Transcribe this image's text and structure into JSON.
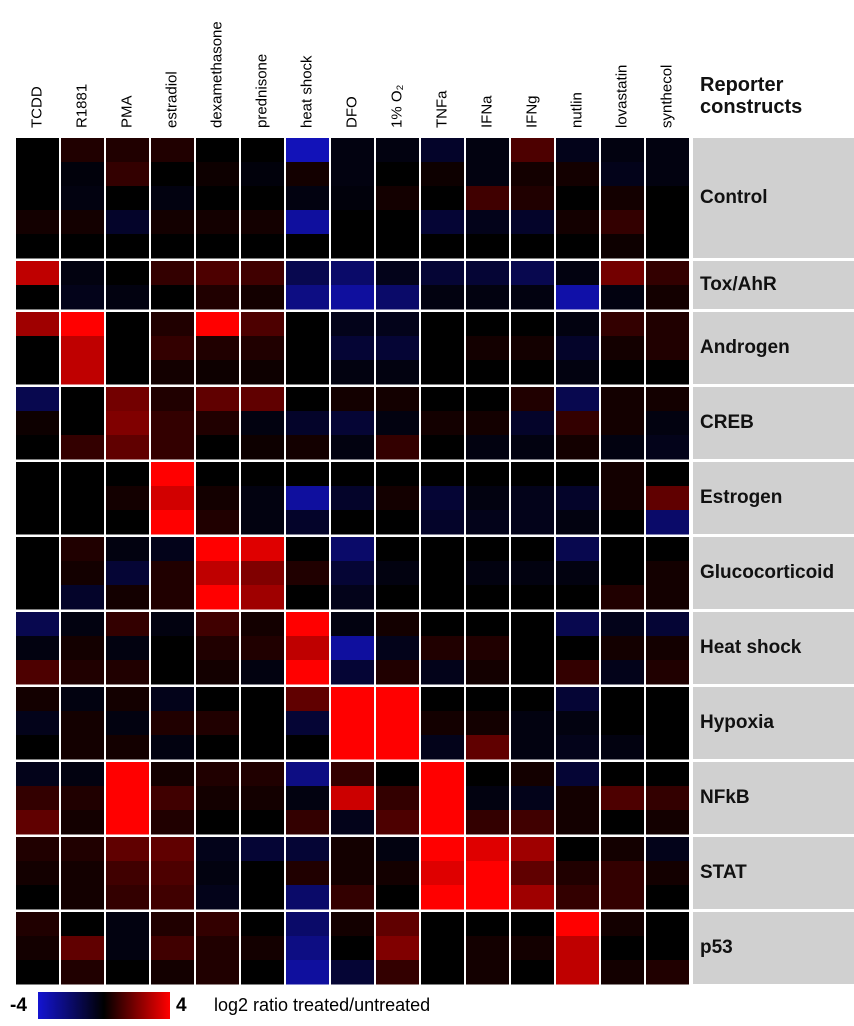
{
  "chart_data": {
    "type": "heatmap",
    "columns": [
      "TCDD",
      "R1881",
      "PMA",
      "estradiol",
      "dexamethasone",
      "prednisone",
      "heat shock",
      "DFO",
      "1% O₂",
      "TNFa",
      "IFNa",
      "IFNg",
      "nutlin",
      "lovastatin",
      "synthecol"
    ],
    "row_header": "Reporter constructs",
    "zlim": [
      -4,
      4
    ],
    "colorbar_label": "log2 ratio treated/untreated",
    "color_low": "#1414d2",
    "color_mid": "#000000",
    "color_high": "#ff0000",
    "groups": [
      {
        "label": "Control",
        "rows": [
          [
            0,
            0.5,
            0.5,
            0.5,
            0,
            0,
            -3.5,
            -0.3,
            -0.3,
            -0.8,
            -0.3,
            1.2,
            -0.5,
            -0.3,
            -0.3
          ],
          [
            0,
            -0.2,
            0.8,
            0,
            0.2,
            -0.2,
            0.3,
            -0.3,
            0,
            0.2,
            -0.3,
            0.3,
            0.3,
            -0.5,
            -0.3
          ],
          [
            0,
            -0.3,
            0,
            -0.3,
            0,
            0,
            -0.3,
            -0.2,
            0.3,
            0,
            1,
            0.5,
            0,
            0.3,
            0
          ],
          [
            0.3,
            0.3,
            -0.8,
            0.3,
            0.3,
            0.3,
            -3,
            0,
            0,
            -1,
            -0.5,
            -0.8,
            0.3,
            0.8,
            0
          ],
          [
            0,
            0,
            0,
            0,
            0,
            0,
            0,
            0,
            0,
            0,
            0,
            0,
            0,
            0.2,
            0
          ]
        ]
      },
      {
        "label": "Tox/AhR",
        "rows": [
          [
            3,
            -0.3,
            0,
            0.8,
            1.2,
            1,
            -1.5,
            -2,
            -0.5,
            -1,
            -1,
            -1.5,
            -0.3,
            1.8,
            0.8
          ],
          [
            0,
            -0.5,
            -0.3,
            0,
            0.5,
            0.3,
            -2.5,
            -3,
            -2,
            -0.3,
            -0.3,
            -0.3,
            -3.2,
            -0.3,
            0.3
          ]
        ]
      },
      {
        "label": "Androgen",
        "rows": [
          [
            2.5,
            4,
            0,
            0.5,
            4,
            1.2,
            0,
            -0.5,
            -0.5,
            0,
            0,
            0,
            -0.3,
            0.8,
            0.5
          ],
          [
            0,
            3,
            0,
            0.8,
            0.5,
            0.5,
            0,
            -1,
            -1,
            0,
            0.3,
            0.3,
            -0.8,
            0.3,
            0.5
          ],
          [
            0,
            3,
            0,
            0.3,
            0.2,
            0.2,
            0,
            -0.3,
            -0.3,
            0,
            0,
            0,
            -0.3,
            0,
            0
          ]
        ]
      },
      {
        "label": "CREB",
        "rows": [
          [
            -1.5,
            0,
            1.8,
            0.5,
            1.5,
            1.5,
            0,
            0.3,
            0.3,
            0,
            0,
            0.5,
            -1.5,
            0.3,
            0.3
          ],
          [
            0.2,
            0,
            2,
            0.8,
            0.5,
            -0.3,
            -0.8,
            -1,
            -0.3,
            0.3,
            0.3,
            -0.8,
            0.8,
            0.3,
            -0.3
          ],
          [
            0,
            0.8,
            1.5,
            0.8,
            0,
            0.2,
            0.3,
            -0.3,
            0.8,
            0,
            -0.3,
            -0.3,
            0.3,
            -0.3,
            -0.5
          ]
        ]
      },
      {
        "label": "Estrogen",
        "rows": [
          [
            0,
            0,
            0,
            4,
            0,
            0,
            0,
            0,
            0,
            0,
            0,
            0,
            0,
            0.3,
            0
          ],
          [
            0,
            0,
            0.3,
            3.3,
            0.3,
            -0.3,
            -3,
            -0.8,
            0.3,
            -1,
            -0.3,
            -0.5,
            -0.8,
            0.3,
            1.5
          ],
          [
            0,
            0,
            0,
            4,
            0.5,
            -0.3,
            -0.8,
            0,
            0,
            -0.8,
            -0.5,
            -0.5,
            -0.3,
            0,
            -2
          ]
        ]
      },
      {
        "label": "Glucocorticoid",
        "rows": [
          [
            0,
            0.5,
            -0.3,
            -0.5,
            4,
            3.5,
            0,
            -2,
            0,
            0,
            0,
            0,
            -1.5,
            0,
            0
          ],
          [
            0,
            0.3,
            -1,
            0.5,
            3,
            2,
            0.5,
            -1,
            -0.3,
            0,
            -0.3,
            -0.3,
            -0.3,
            0,
            0.3
          ],
          [
            0,
            -0.8,
            0.3,
            0.5,
            4,
            2.5,
            0,
            -0.5,
            0,
            0,
            0,
            0,
            0,
            0.5,
            0.3
          ]
        ]
      },
      {
        "label": "Heat shock",
        "rows": [
          [
            -1.5,
            -0.3,
            0.8,
            -0.3,
            1,
            0.3,
            4,
            -0.3,
            0.3,
            0,
            0,
            0,
            -1.5,
            -0.5,
            -1
          ],
          [
            -0.3,
            0.3,
            -0.3,
            0,
            0.5,
            0.5,
            3,
            -3,
            -0.5,
            0.5,
            0.5,
            0,
            0,
            0.3,
            0.3
          ],
          [
            1.2,
            0.5,
            0.5,
            0,
            0.3,
            -0.3,
            4,
            -1,
            0.5,
            -0.5,
            0.3,
            0,
            0.8,
            -0.5,
            0.5
          ]
        ]
      },
      {
        "label": "Hypoxia",
        "rows": [
          [
            0.3,
            -0.3,
            0.3,
            -0.5,
            0,
            0,
            1.5,
            4,
            4,
            0,
            0,
            0,
            -1,
            0,
            0
          ],
          [
            -0.5,
            0.3,
            -0.3,
            0.5,
            0.5,
            0,
            -1,
            4,
            4,
            0.3,
            0.3,
            -0.3,
            -0.3,
            0,
            0
          ],
          [
            0,
            0.3,
            0.3,
            -0.3,
            0,
            0,
            0,
            4,
            4,
            -0.5,
            1.5,
            -0.3,
            -0.5,
            -0.3,
            0
          ]
        ]
      },
      {
        "label": "NFkB",
        "rows": [
          [
            -0.5,
            -0.3,
            4,
            0.3,
            0.5,
            0.5,
            -2.5,
            0.8,
            0,
            4,
            0,
            0.3,
            -1,
            0,
            0
          ],
          [
            0.8,
            0.5,
            4,
            1,
            0.3,
            0.3,
            -0.3,
            3.2,
            0.8,
            4,
            -0.3,
            -0.5,
            0.3,
            1.2,
            0.8
          ],
          [
            1.5,
            0.3,
            4,
            0.5,
            0,
            0,
            0.8,
            -0.5,
            1.2,
            4,
            0.8,
            1,
            0.3,
            0,
            0.3
          ]
        ]
      },
      {
        "label": "STAT",
        "rows": [
          [
            0.5,
            0.5,
            1.5,
            1.5,
            -0.5,
            -1,
            -1,
            0.3,
            -0.3,
            4,
            3.5,
            2.5,
            0,
            0.3,
            -0.5
          ],
          [
            0.3,
            0.3,
            1,
            1.2,
            -0.3,
            0,
            0.5,
            0.3,
            0.3,
            3.5,
            4,
            1.5,
            0.5,
            0.8,
            0.3
          ],
          [
            0,
            0.3,
            0.8,
            1,
            -0.5,
            0,
            -2,
            0.8,
            0,
            4,
            4,
            2.5,
            0.8,
            0.8,
            0
          ]
        ]
      },
      {
        "label": "p53",
        "rows": [
          [
            0.5,
            0,
            -0.3,
            0.5,
            0.8,
            0,
            -2,
            0.3,
            1.5,
            0,
            0,
            0,
            4,
            0.3,
            0
          ],
          [
            0.3,
            1.5,
            -0.3,
            1,
            0.5,
            0.3,
            -2.5,
            0,
            2,
            0,
            0.3,
            0.3,
            3,
            0,
            0
          ],
          [
            0,
            0.5,
            0,
            0.3,
            0.5,
            0,
            -3,
            -1,
            0.8,
            0,
            0.3,
            0,
            3,
            0.3,
            0.5
          ]
        ]
      }
    ]
  }
}
